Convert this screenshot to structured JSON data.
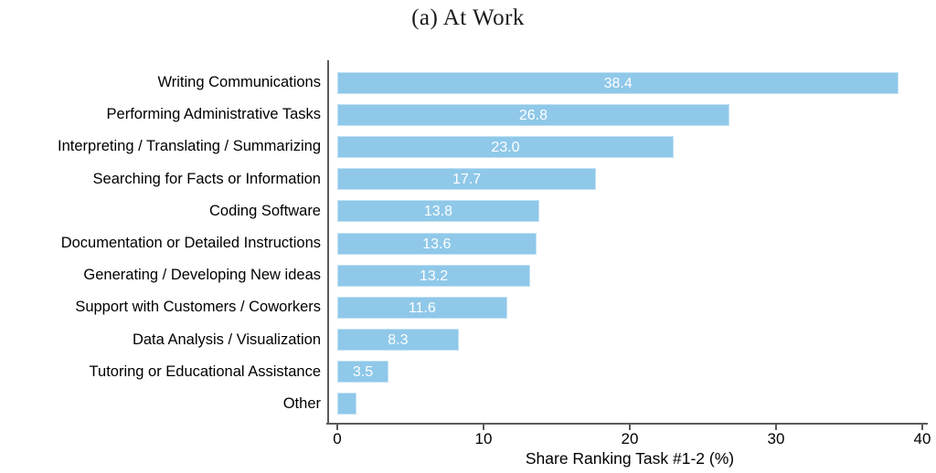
{
  "chart_data": {
    "type": "bar",
    "orientation": "horizontal",
    "title": "(a) At Work",
    "xlabel": "Share Ranking Task #1-2 (%)",
    "xlim": [
      0,
      40
    ],
    "xticks": [
      0,
      10,
      20,
      30,
      40
    ],
    "grid": false,
    "legend": false,
    "bar_color": "#8FC8E9",
    "value_label_color": "#FFFFFF",
    "axis_color": "#5A5A5A",
    "categories": [
      "Writing Communications",
      "Performing Administrative Tasks",
      "Interpreting / Translating / Summarizing",
      "Searching for Facts or Information",
      "Coding Software",
      "Documentation or Detailed Instructions",
      "Generating / Developing New ideas",
      "Support with Customers / Coworkers",
      "Data Analysis / Visualization",
      "Tutoring or Educational Assistance",
      "Other"
    ],
    "values": [
      38.4,
      26.8,
      23.0,
      17.7,
      13.8,
      13.6,
      13.2,
      11.6,
      8.3,
      3.5,
      1.3
    ],
    "bar_labels": [
      "38.4",
      "26.8",
      "23.0",
      "17.7",
      "13.8",
      "13.6",
      "13.2",
      "11.6",
      "8.3",
      "3.5",
      ""
    ]
  }
}
